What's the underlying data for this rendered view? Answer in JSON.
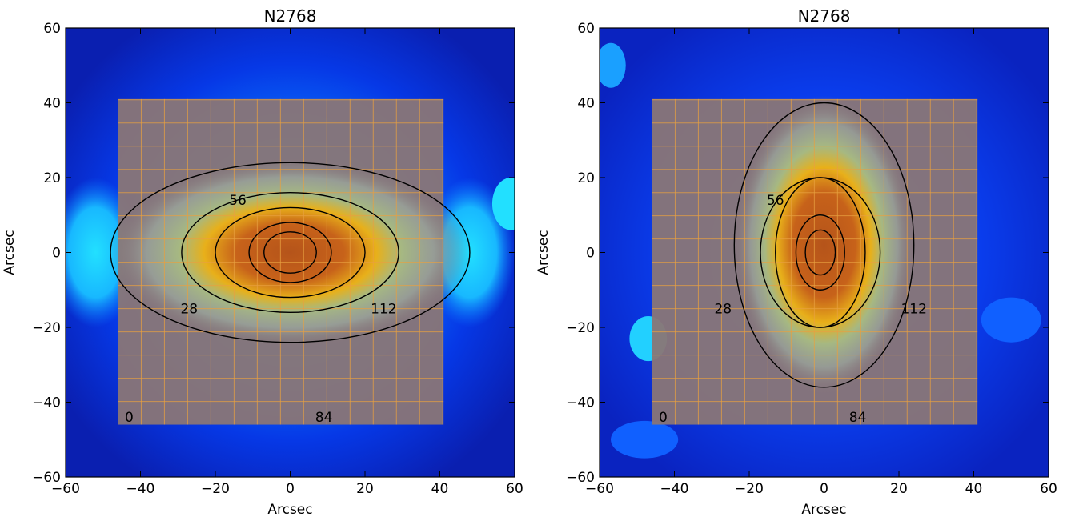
{
  "chart_data": [
    {
      "type": "heatmap",
      "title": "N2768",
      "xlabel": "Arcsec",
      "ylabel": "Arcsec",
      "xlim": [
        -60,
        60
      ],
      "ylim": [
        -60,
        60
      ],
      "xticks": [
        -60,
        -40,
        -20,
        0,
        20,
        40,
        60
      ],
      "yticks": [
        -60,
        -40,
        -20,
        0,
        20,
        40,
        60
      ],
      "overlay_box": {
        "x": [
          -46,
          41
        ],
        "y": [
          -46,
          41
        ],
        "grid_step": 6.2
      },
      "contours": [
        {
          "cx": 0,
          "cy": 0,
          "rx": 48,
          "ry": 24
        },
        {
          "cx": 0,
          "cy": 0,
          "rx": 29,
          "ry": 16
        },
        {
          "cx": 0,
          "cy": 0,
          "rx": 20,
          "ry": 12
        },
        {
          "cx": 0,
          "cy": 0,
          "rx": 11,
          "ry": 8
        },
        {
          "cx": 0,
          "cy": 0,
          "rx": 7,
          "ry": 5.5
        }
      ],
      "annotations": [
        {
          "text": "56",
          "x": -14,
          "y": 14
        },
        {
          "text": "28",
          "x": -27,
          "y": -15
        },
        {
          "text": "112",
          "x": 25,
          "y": -15
        },
        {
          "text": "0",
          "x": -43,
          "y": -44
        },
        {
          "text": "84",
          "x": 9,
          "y": -44
        }
      ]
    },
    {
      "type": "heatmap",
      "title": "N2768",
      "xlabel": "Arcsec",
      "ylabel": "Arcsec",
      "xlim": [
        -60,
        60
      ],
      "ylim": [
        -60,
        60
      ],
      "xticks": [
        -60,
        -40,
        -20,
        0,
        20,
        40,
        60
      ],
      "yticks": [
        -60,
        -40,
        -20,
        0,
        20,
        40,
        60
      ],
      "overlay_box": {
        "x": [
          -46,
          41
        ],
        "y": [
          -46,
          41
        ],
        "grid_step": 6.2
      },
      "contours": [
        {
          "cx": 0,
          "cy": 2,
          "rx": 24,
          "ry": 38
        },
        {
          "cx": -1,
          "cy": 0,
          "rx": 16,
          "ry": 20
        },
        {
          "cx": -1,
          "cy": 0,
          "rx": 12,
          "ry": 20
        },
        {
          "cx": -1,
          "cy": 0,
          "rx": 6.5,
          "ry": 10
        },
        {
          "cx": -1,
          "cy": 0,
          "rx": 4,
          "ry": 6
        }
      ],
      "annotations": [
        {
          "text": "56",
          "x": -13,
          "y": 14
        },
        {
          "text": "28",
          "x": -27,
          "y": -15
        },
        {
          "text": "112",
          "x": 24,
          "y": -15
        },
        {
          "text": "0",
          "x": -43,
          "y": -44
        },
        {
          "text": "84",
          "x": 9,
          "y": -44
        }
      ]
    }
  ]
}
